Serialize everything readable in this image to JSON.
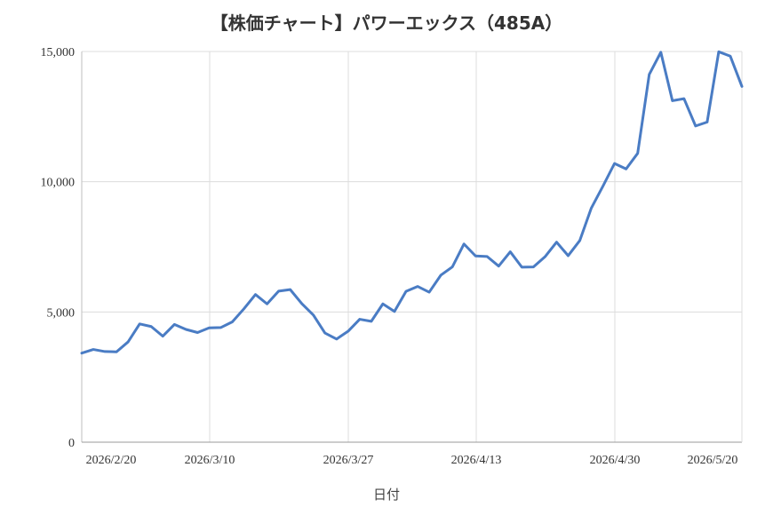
{
  "chart_data": {
    "type": "line",
    "title": "【株価チャート】パワーエックス（485A）",
    "xlabel": "日付",
    "ylabel": "",
    "ylim": [
      0,
      15000
    ],
    "y_ticks": [
      "0",
      "5,000",
      "10,000",
      "15,000"
    ],
    "x_ticks": [
      "2026/2/20",
      "2026/3/10",
      "2026/3/27",
      "2026/4/13",
      "2026/4/30",
      "2026/5/20"
    ],
    "grid": true,
    "line_color": "#4a7cc4",
    "series": [
      {
        "values": [
          3420,
          3560,
          3480,
          3470,
          3850,
          4540,
          4440,
          4070,
          4520,
          4330,
          4210,
          4390,
          4400,
          4620,
          5120,
          5670,
          5310,
          5800,
          5860,
          5320,
          4880,
          4190,
          3960,
          4260,
          4720,
          4640,
          5310,
          5020,
          5790,
          5980,
          5760,
          6410,
          6730,
          7610,
          7150,
          7130,
          6760,
          7310,
          6720,
          6730,
          7120,
          7680,
          7160,
          7740,
          8990,
          9830,
          10700,
          10490,
          11090,
          14120,
          14970,
          13110,
          13190,
          12140,
          12290,
          14990,
          14820,
          13660
        ]
      }
    ]
  }
}
